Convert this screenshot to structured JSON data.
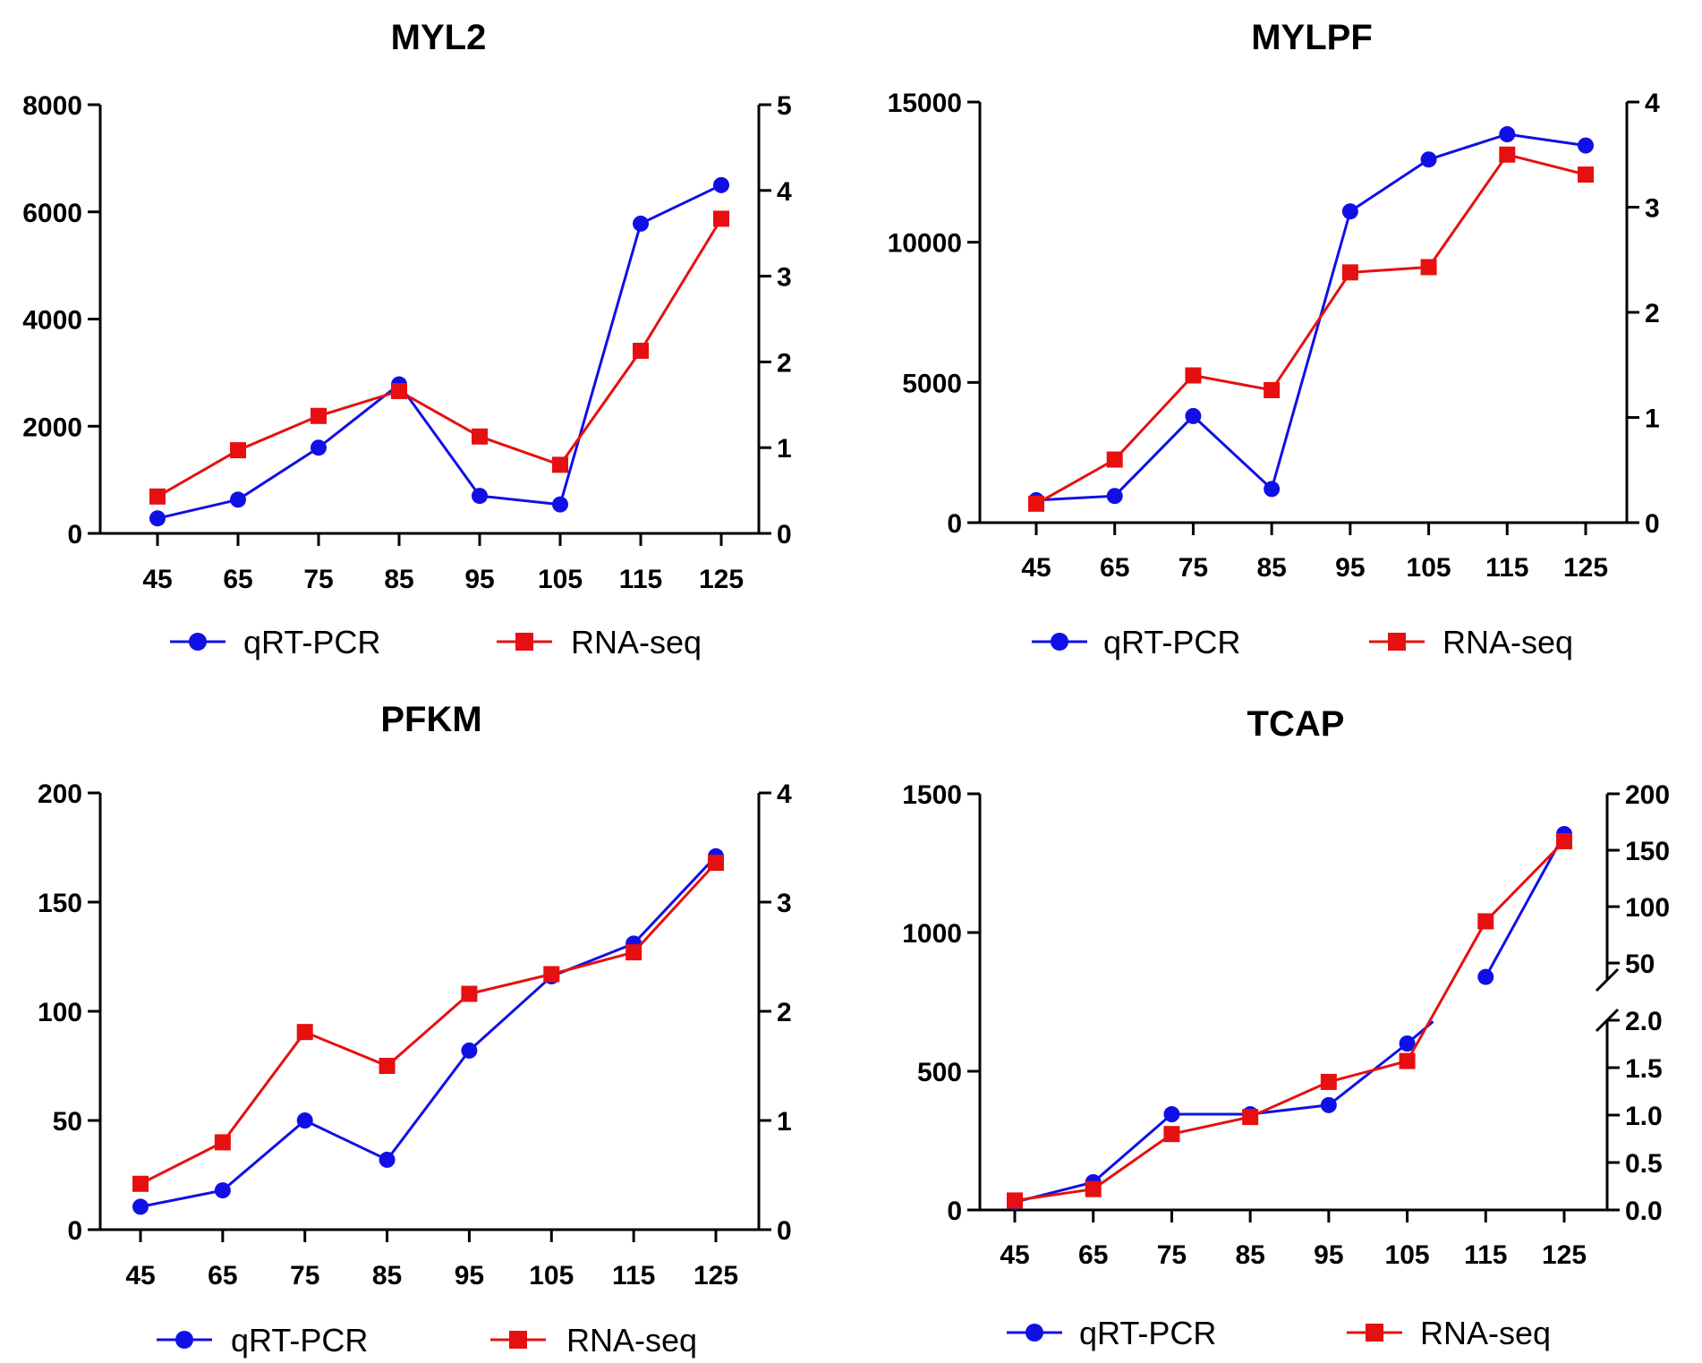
{
  "chart_data": [
    {
      "type": "line",
      "title": "MYL2",
      "categories": [
        "45",
        "65",
        "75",
        "85",
        "95",
        "105",
        "115",
        "125"
      ],
      "left_axis": {
        "ylim": [
          0,
          8000
        ],
        "ticks": [
          "0",
          "2000",
          "4000",
          "6000",
          "8000"
        ]
      },
      "right_axis": {
        "ylim": [
          0,
          5
        ],
        "ticks": [
          "0",
          "1",
          "2",
          "3",
          "4",
          "5"
        ]
      },
      "series": [
        {
          "name": "qRT-PCR",
          "axis": "left",
          "color": "#1010e6",
          "marker": "circle",
          "values": [
            280,
            630,
            1600,
            2780,
            700,
            540,
            5780,
            6500
          ]
        },
        {
          "name": "RNA-seq",
          "axis": "right",
          "color": "#e61010",
          "marker": "square",
          "values": [
            0.43,
            0.97,
            1.37,
            1.66,
            1.13,
            0.8,
            2.13,
            3.67
          ]
        }
      ],
      "legend": "bottom"
    },
    {
      "type": "line",
      "title": "MYLPF",
      "categories": [
        "45",
        "65",
        "75",
        "85",
        "95",
        "105",
        "115",
        "125"
      ],
      "left_axis": {
        "ylim": [
          0,
          15000
        ],
        "ticks": [
          "0",
          "5000",
          "10000",
          "15000"
        ]
      },
      "right_axis": {
        "ylim": [
          0,
          4
        ],
        "ticks": [
          "0",
          "1",
          "2",
          "3",
          "4"
        ]
      },
      "series": [
        {
          "name": "qRT-PCR",
          "axis": "left",
          "color": "#1010e6",
          "marker": "circle",
          "values": [
            800,
            950,
            3800,
            1200,
            11100,
            12950,
            13850,
            13450
          ]
        },
        {
          "name": "RNA-seq",
          "axis": "right",
          "color": "#e61010",
          "marker": "square",
          "values": [
            0.18,
            0.6,
            1.4,
            1.26,
            2.38,
            2.43,
            3.5,
            3.31
          ]
        }
      ],
      "legend": "bottom"
    },
    {
      "type": "line",
      "title": "PFKM",
      "categories": [
        "45",
        "65",
        "75",
        "85",
        "95",
        "105",
        "115",
        "125"
      ],
      "left_axis": {
        "ylim": [
          0,
          200
        ],
        "ticks": [
          "0",
          "50",
          "100",
          "150",
          "200"
        ]
      },
      "right_axis": {
        "ylim": [
          0,
          4
        ],
        "ticks": [
          "0",
          "1",
          "2",
          "3",
          "4"
        ]
      },
      "series": [
        {
          "name": "qRT-PCR",
          "axis": "left",
          "color": "#1010e6",
          "marker": "circle",
          "values": [
            10.5,
            18,
            50,
            32,
            82,
            116,
            131,
            171
          ]
        },
        {
          "name": "RNA-seq",
          "axis": "right",
          "color": "#e61010",
          "marker": "square",
          "values": [
            0.42,
            0.8,
            1.81,
            1.5,
            2.16,
            2.34,
            2.54,
            3.36
          ]
        }
      ],
      "legend": "bottom"
    },
    {
      "type": "line",
      "title": "TCAP",
      "categories": [
        "45",
        "65",
        "75",
        "85",
        "95",
        "105",
        "115",
        "125"
      ],
      "left_axis": {
        "ylim": [
          0,
          1500
        ],
        "ticks": [
          "0",
          "500",
          "1000",
          "1500"
        ]
      },
      "right_axis": {
        "broken": true,
        "lower_segment": {
          "ylim": [
            0,
            2
          ],
          "ticks": [
            "0.0",
            "0.5",
            "1.0",
            "1.5",
            "2.0"
          ]
        },
        "upper_segment": {
          "ylim": [
            35,
            200
          ],
          "ticks": [
            "50",
            "100",
            "150",
            "200"
          ]
        }
      },
      "series": [
        {
          "name": "qRT-PCR",
          "axis": "left",
          "color": "#1010e6",
          "marker": "circle",
          "values": [
            28,
            100,
            345,
            345,
            378,
            600,
            840,
            1355
          ]
        },
        {
          "name": "RNA-seq",
          "axis": "right",
          "color": "#e61010",
          "marker": "square",
          "values": [
            0.1,
            0.22,
            0.8,
            0.98,
            1.35,
            1.57,
            87,
            158
          ]
        }
      ],
      "legend": "bottom"
    }
  ]
}
